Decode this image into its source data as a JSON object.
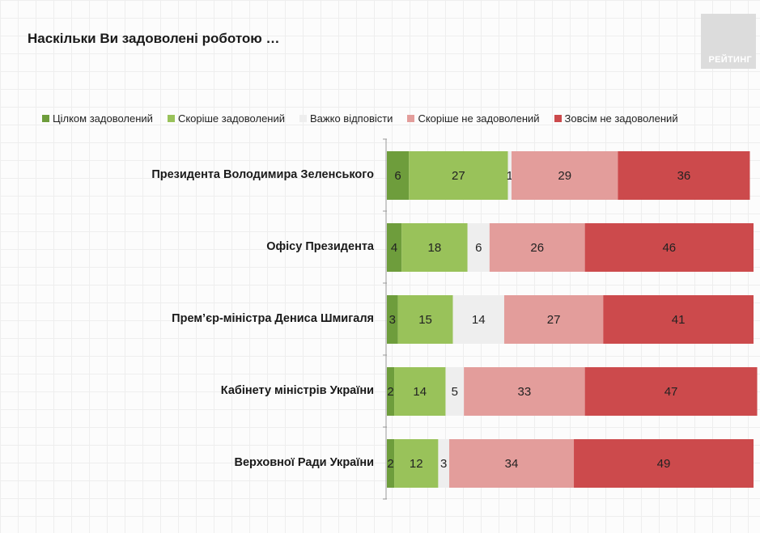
{
  "title": "Наскільки Ви задоволені роботою …",
  "logo": {
    "text": "РЕЙТИНГ"
  },
  "chart_data": {
    "type": "bar",
    "orientation": "horizontal",
    "stacked": true,
    "title": "Наскільки Ви задоволені роботою …",
    "categories": [
      "Президента Володимира Зеленського",
      "Офісу Президента",
      "Прем’єр-міністра Дениса Шмигаля",
      "Кабінету міністрів України",
      "Верховної Ради України"
    ],
    "series": [
      {
        "name": "Цілком задоволений",
        "color": "#6e9d3c",
        "values": [
          6,
          4,
          3,
          2,
          2
        ]
      },
      {
        "name": "Скоріше задоволений",
        "color": "#99c25a",
        "values": [
          27,
          18,
          15,
          14,
          12
        ]
      },
      {
        "name": "Важко відповісти",
        "color": "#eeeeee",
        "values": [
          1,
          6,
          14,
          5,
          3
        ]
      },
      {
        "name": "Скоріше не задоволений",
        "color": "#e39d9b",
        "values": [
          29,
          26,
          27,
          33,
          34
        ]
      },
      {
        "name": "Зовсім не задоволений",
        "color": "#cc4a4c",
        "values": [
          36,
          46,
          41,
          47,
          49
        ]
      }
    ],
    "legend": "top",
    "xlim": [
      0,
      100
    ],
    "grid": false
  }
}
